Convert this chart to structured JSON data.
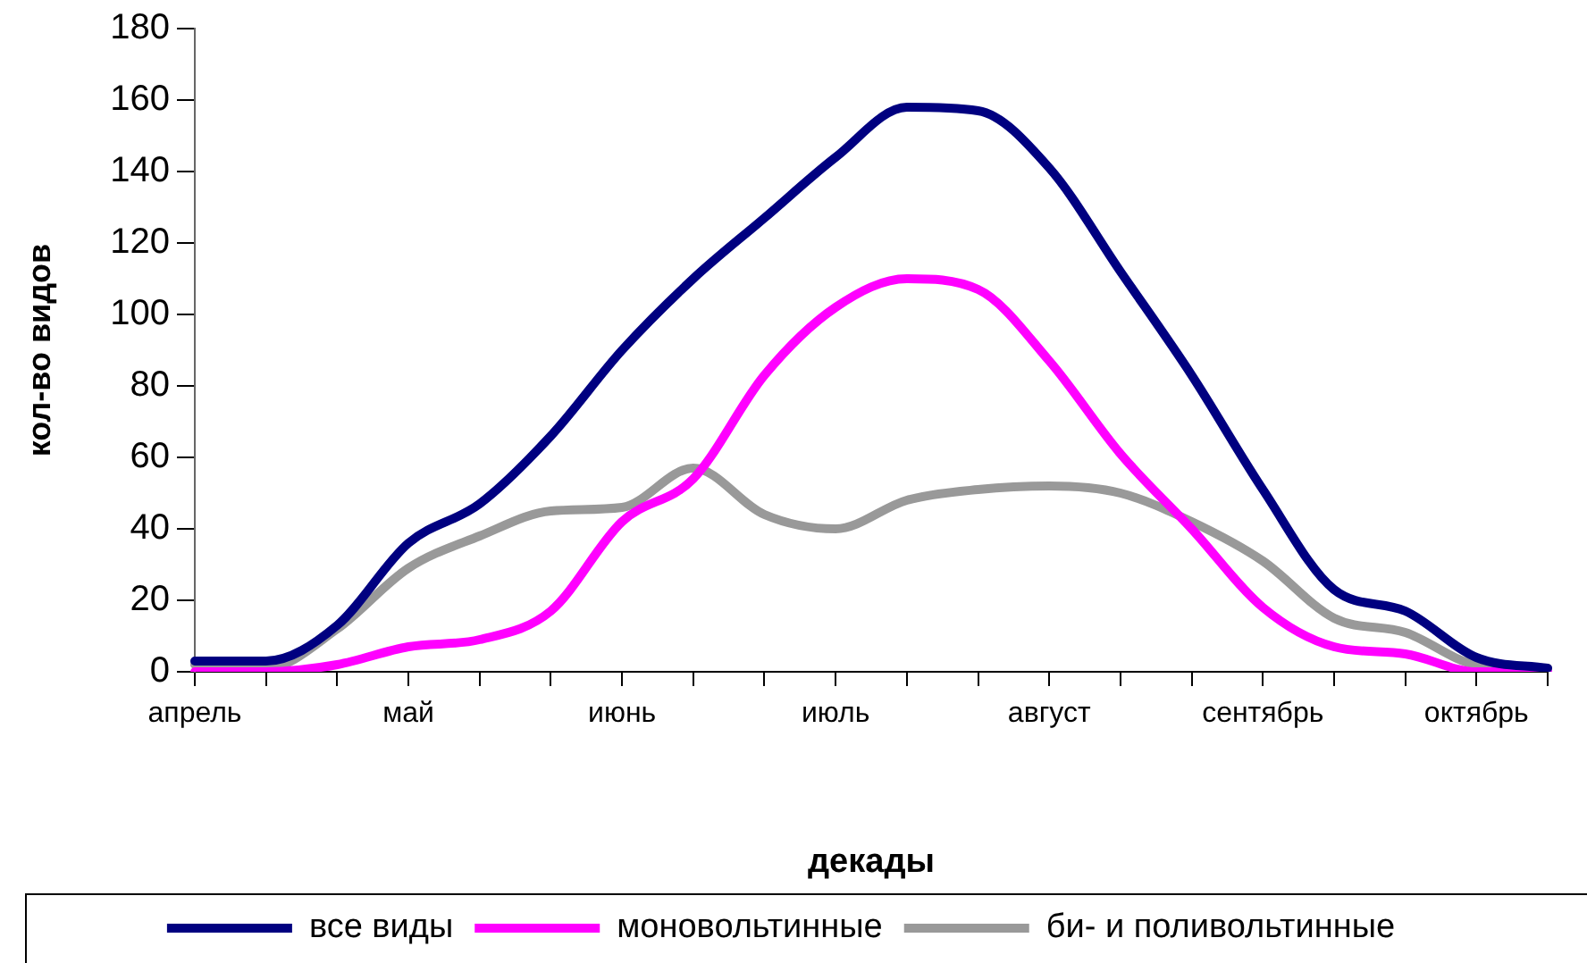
{
  "chart_data": {
    "type": "line",
    "xlabel": "декады",
    "ylabel": "кол-во видов",
    "categories": [
      "апрель",
      null,
      null,
      "май",
      null,
      null,
      "июнь",
      null,
      null,
      "июль",
      null,
      null,
      "август",
      null,
      null,
      "сентябрь",
      null,
      null,
      "октябрь",
      null
    ],
    "series": [
      {
        "name": "все виды",
        "color": "#000080",
        "values": [
          3,
          3,
          13,
          36,
          47,
          66,
          90,
          110,
          127,
          144,
          158,
          157,
          141,
          112,
          83,
          51,
          23,
          17,
          4,
          1
        ]
      },
      {
        "name": "моновольтинные",
        "color": "#ff00ff",
        "values": [
          0,
          0,
          2,
          7,
          9,
          17,
          42,
          54,
          83,
          102,
          110,
          107,
          87,
          61,
          40,
          18,
          7,
          5,
          0,
          0
        ]
      },
      {
        "name": "би- и поливольтинные",
        "color": "#999999",
        "values": [
          2,
          1,
          12,
          29,
          38,
          45,
          46,
          57,
          44,
          40,
          48,
          51,
          52,
          50,
          42,
          31,
          15,
          11,
          2,
          1
        ]
      }
    ],
    "ylim": [
      0,
      180
    ],
    "yticks": [
      0,
      20,
      40,
      60,
      80,
      100,
      120,
      140,
      160,
      180
    ],
    "grid": false,
    "legend": "bottom",
    "marker": "none",
    "line_style": "solid"
  }
}
